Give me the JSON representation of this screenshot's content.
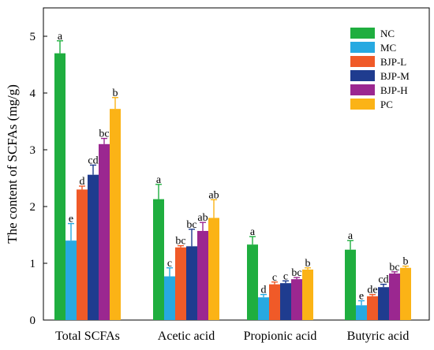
{
  "chart_data": {
    "type": "bar",
    "title": "",
    "xlabel": "",
    "ylabel": "The content of SCFAs (mg/g)",
    "ylim": [
      0,
      5.5
    ],
    "yticks": [
      "0",
      "1",
      "2",
      "3",
      "4",
      "5"
    ],
    "grid": false,
    "legend_position": "top-right",
    "categories": [
      "Total SCFAs",
      "Acetic acid",
      "Propionic acid",
      "Butyric acid"
    ],
    "series": [
      {
        "name": "NC",
        "color": "#1fae3f",
        "values": [
          4.7,
          2.13,
          1.33,
          1.24
        ],
        "errors": [
          0.22,
          0.26,
          0.14,
          0.16
        ],
        "letters": [
          "a",
          "a",
          "a",
          "a"
        ]
      },
      {
        "name": "MC",
        "color": "#27a9e1",
        "values": [
          1.4,
          0.77,
          0.4,
          0.26
        ],
        "errors": [
          0.3,
          0.15,
          0.05,
          0.08
        ],
        "letters": [
          "e",
          "c",
          "d",
          "e"
        ]
      },
      {
        "name": "BJP-L",
        "color": "#f05a28",
        "values": [
          2.3,
          1.28,
          0.63,
          0.42
        ],
        "errors": [
          0.06,
          0.03,
          0.04,
          0.03
        ],
        "letters": [
          "d",
          "bc",
          "c",
          "de"
        ]
      },
      {
        "name": "BJP-M",
        "color": "#1f3c8f",
        "values": [
          2.56,
          1.3,
          0.65,
          0.58
        ],
        "errors": [
          0.17,
          0.3,
          0.04,
          0.05
        ],
        "letters": [
          "cd",
          "bc",
          "c",
          "cd"
        ]
      },
      {
        "name": "BJP-H",
        "color": "#9b2790",
        "values": [
          3.1,
          1.57,
          0.72,
          0.82
        ],
        "errors": [
          0.1,
          0.15,
          0.03,
          0.03
        ],
        "letters": [
          "bc",
          "ab",
          "bc",
          "bc"
        ]
      },
      {
        "name": "PC",
        "color": "#fbb316",
        "values": [
          3.72,
          1.8,
          0.89,
          0.92
        ],
        "errors": [
          0.2,
          0.32,
          0.03,
          0.03
        ],
        "letters": [
          "b",
          "ab",
          "b",
          "b"
        ]
      }
    ]
  }
}
